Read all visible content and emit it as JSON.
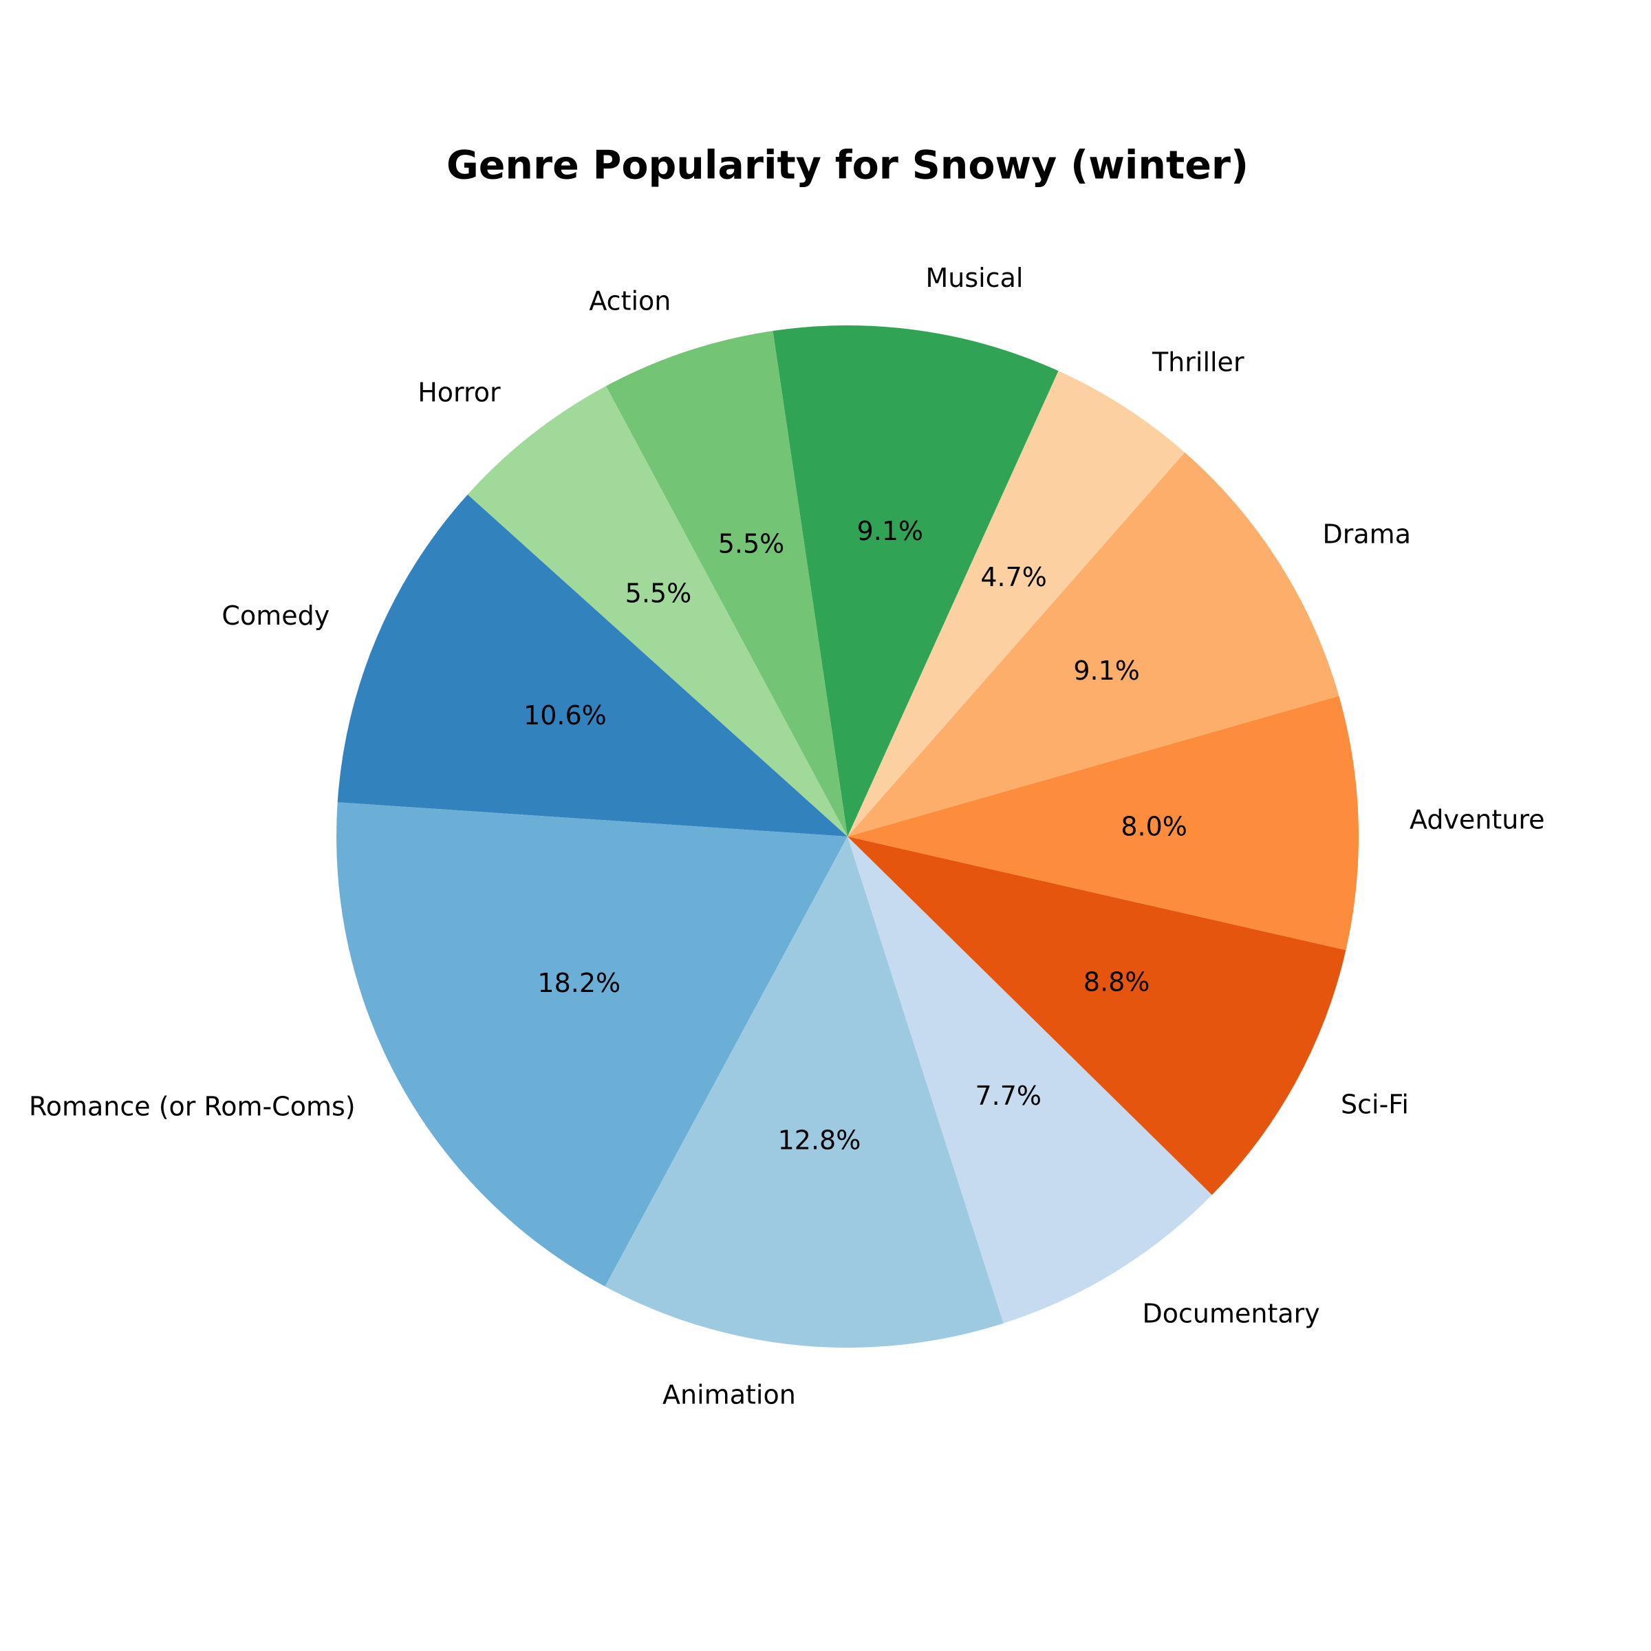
{
  "chart_data": {
    "type": "pie",
    "title": "Genre Popularity for Snowy (winter)",
    "start_angle_deg": 138,
    "direction": "counterclockwise",
    "slices": [
      {
        "label": "Comedy",
        "value": 10.6,
        "pct_text": "10.6%",
        "color": "#3182bd"
      },
      {
        "label": "Romance (or Rom-Coms)",
        "value": 18.2,
        "pct_text": "18.2%",
        "color": "#6baed6"
      },
      {
        "label": "Animation",
        "value": 12.8,
        "pct_text": "12.8%",
        "color": "#9ecae1"
      },
      {
        "label": "Documentary",
        "value": 7.7,
        "pct_text": "7.7%",
        "color": "#c6dbef"
      },
      {
        "label": "Sci-Fi",
        "value": 8.8,
        "pct_text": "8.8%",
        "color": "#e6550d"
      },
      {
        "label": "Adventure",
        "value": 8.0,
        "pct_text": "8.0%",
        "color": "#fd8d3c"
      },
      {
        "label": "Drama",
        "value": 9.1,
        "pct_text": "9.1%",
        "color": "#fdae6b"
      },
      {
        "label": "Thriller",
        "value": 4.7,
        "pct_text": "4.7%",
        "color": "#fdd0a2"
      },
      {
        "label": "Musical",
        "value": 9.1,
        "pct_text": "9.1%",
        "color": "#31a354"
      },
      {
        "label": "Action",
        "value": 5.5,
        "pct_text": "5.5%",
        "color": "#74c476"
      },
      {
        "label": "Horror",
        "value": 5.5,
        "pct_text": "5.5%",
        "color": "#a1d99b"
      }
    ]
  }
}
